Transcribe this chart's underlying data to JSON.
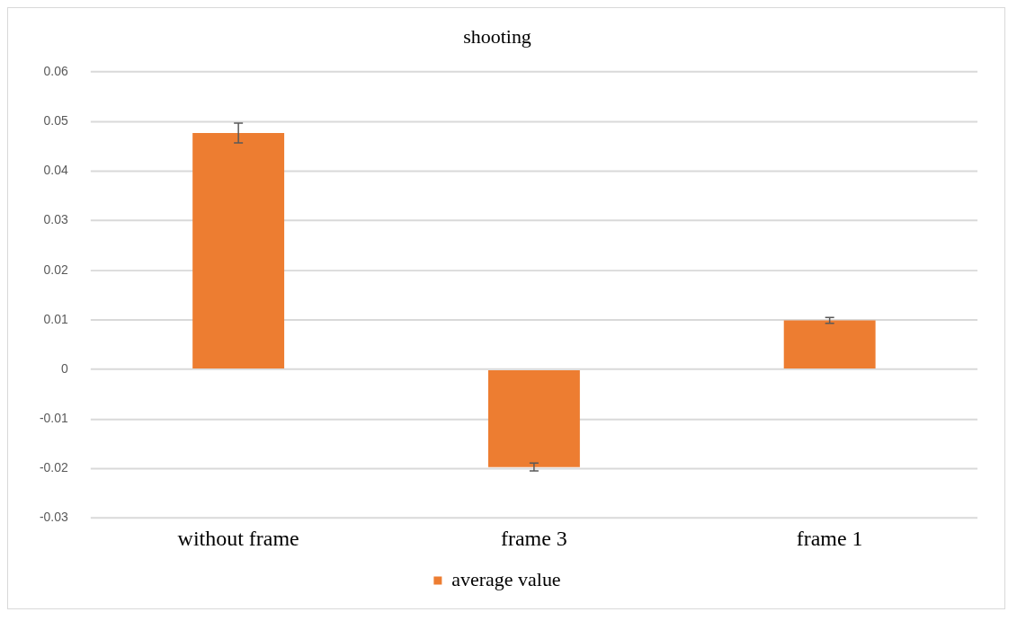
{
  "chart_data": {
    "type": "bar",
    "title": "shooting",
    "categories": [
      "without frame",
      "frame 3",
      "frame 1"
    ],
    "series": [
      {
        "name": "average value",
        "color": "#ed7d31",
        "values": [
          0.0477,
          -0.0197,
          0.0099
        ],
        "errors": [
          0.002,
          0.0008,
          0.0006
        ]
      }
    ],
    "ylim": [
      -0.03,
      0.06
    ],
    "yticks": [
      -0.03,
      -0.02,
      -0.01,
      0,
      0.01,
      0.02,
      0.03,
      0.04,
      0.05,
      0.06
    ],
    "grid": "y",
    "legend": "bottom"
  }
}
